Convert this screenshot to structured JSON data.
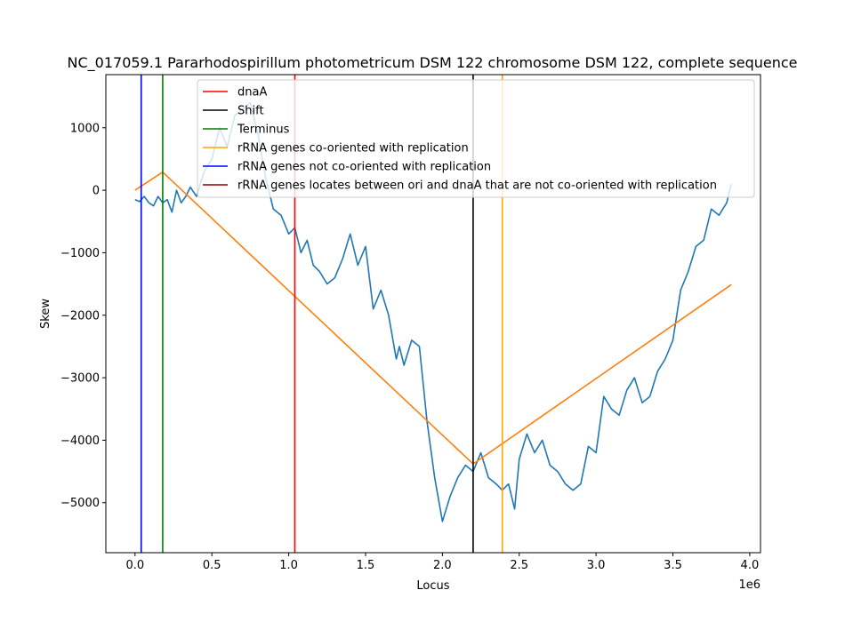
{
  "chart_data": {
    "type": "line",
    "title": "NC_017059.1 Pararhodospirillum photometricum DSM 122 chromosome DSM 122, complete sequence",
    "xlabel": "Locus",
    "ylabel": "Skew",
    "x_offset_label": "1e6",
    "xlim": [
      -0.19,
      4.07
    ],
    "ylim": [
      -5800,
      1850
    ],
    "x_ticks": [
      0.0,
      0.5,
      1.0,
      1.5,
      2.0,
      2.5,
      3.0,
      3.5,
      4.0
    ],
    "x_tick_labels": [
      "0.0",
      "0.5",
      "1.0",
      "1.5",
      "2.0",
      "2.5",
      "3.0",
      "3.5",
      "4.0"
    ],
    "y_ticks": [
      1000,
      0,
      -1000,
      -2000,
      -3000,
      -4000,
      -5000
    ],
    "y_tick_labels": [
      "1000",
      "0",
      "−1000",
      "−2000",
      "−3000",
      "−4000",
      "−5000"
    ],
    "grid": false,
    "legend_position": "top-right",
    "vlines": [
      {
        "name": "dnaA",
        "x": 1.04,
        "color": "#ff0000"
      },
      {
        "name": "Shift",
        "x": 2.2,
        "color": "#000000"
      },
      {
        "name": "Terminus",
        "x": 0.18,
        "color": "#008000"
      },
      {
        "name": "rRNA genes co-oriented with replication",
        "x": 2.39,
        "color": "#ffa500"
      },
      {
        "name": "rRNA genes not co-oriented with replication",
        "x": 0.04,
        "color": "#0000ff"
      },
      {
        "name": "rRNA genes locates between ori and dnaA that are not co-oriented with replication",
        "x": null,
        "color": "#8b0000"
      }
    ],
    "series": [
      {
        "color": "#1f77b4",
        "x": [
          0.0,
          0.03,
          0.06,
          0.09,
          0.12,
          0.15,
          0.18,
          0.21,
          0.24,
          0.27,
          0.3,
          0.33,
          0.36,
          0.4,
          0.45,
          0.5,
          0.55,
          0.6,
          0.65,
          0.7,
          0.75,
          0.8,
          0.85,
          0.9,
          0.95,
          1.0,
          1.04,
          1.08,
          1.12,
          1.16,
          1.2,
          1.25,
          1.3,
          1.35,
          1.4,
          1.45,
          1.5,
          1.55,
          1.6,
          1.65,
          1.7,
          1.72,
          1.75,
          1.8,
          1.85,
          1.9,
          1.95,
          2.0,
          2.05,
          2.1,
          2.15,
          2.2,
          2.25,
          2.3,
          2.35,
          2.39,
          2.43,
          2.47,
          2.5,
          2.55,
          2.6,
          2.65,
          2.7,
          2.75,
          2.8,
          2.85,
          2.9,
          2.95,
          3.0,
          3.05,
          3.1,
          3.15,
          3.2,
          3.25,
          3.3,
          3.35,
          3.4,
          3.45,
          3.5,
          3.55,
          3.6,
          3.65,
          3.7,
          3.75,
          3.8,
          3.85,
          3.88
        ],
        "y": [
          -150,
          -180,
          -100,
          -200,
          -250,
          -100,
          -200,
          -150,
          -350,
          0,
          -200,
          -100,
          50,
          -100,
          300,
          500,
          1000,
          700,
          1200,
          1300,
          1400,
          900,
          200,
          -300,
          -400,
          -700,
          -600,
          -1000,
          -800,
          -1200,
          -1300,
          -1500,
          -1400,
          -1100,
          -700,
          -1200,
          -900,
          -1900,
          -1600,
          -2000,
          -2700,
          -2500,
          -2800,
          -2400,
          -2500,
          -3700,
          -4600,
          -5300,
          -4900,
          -4600,
          -4400,
          -4500,
          -4200,
          -4600,
          -4700,
          -4800,
          -4700,
          -5100,
          -4300,
          -3900,
          -4200,
          -4000,
          -4400,
          -4500,
          -4700,
          -4800,
          -4700,
          -4100,
          -4200,
          -3300,
          -3500,
          -3600,
          -3200,
          -3000,
          -3400,
          -3300,
          -2900,
          -2700,
          -2400,
          -1600,
          -1300,
          -900,
          -800,
          -300,
          -400,
          -200,
          100
        ]
      },
      {
        "color": "#ff7f0e",
        "x": [
          0.0,
          0.18,
          2.2,
          3.88
        ],
        "y": [
          0,
          290,
          -4380,
          -1510
        ]
      }
    ]
  }
}
